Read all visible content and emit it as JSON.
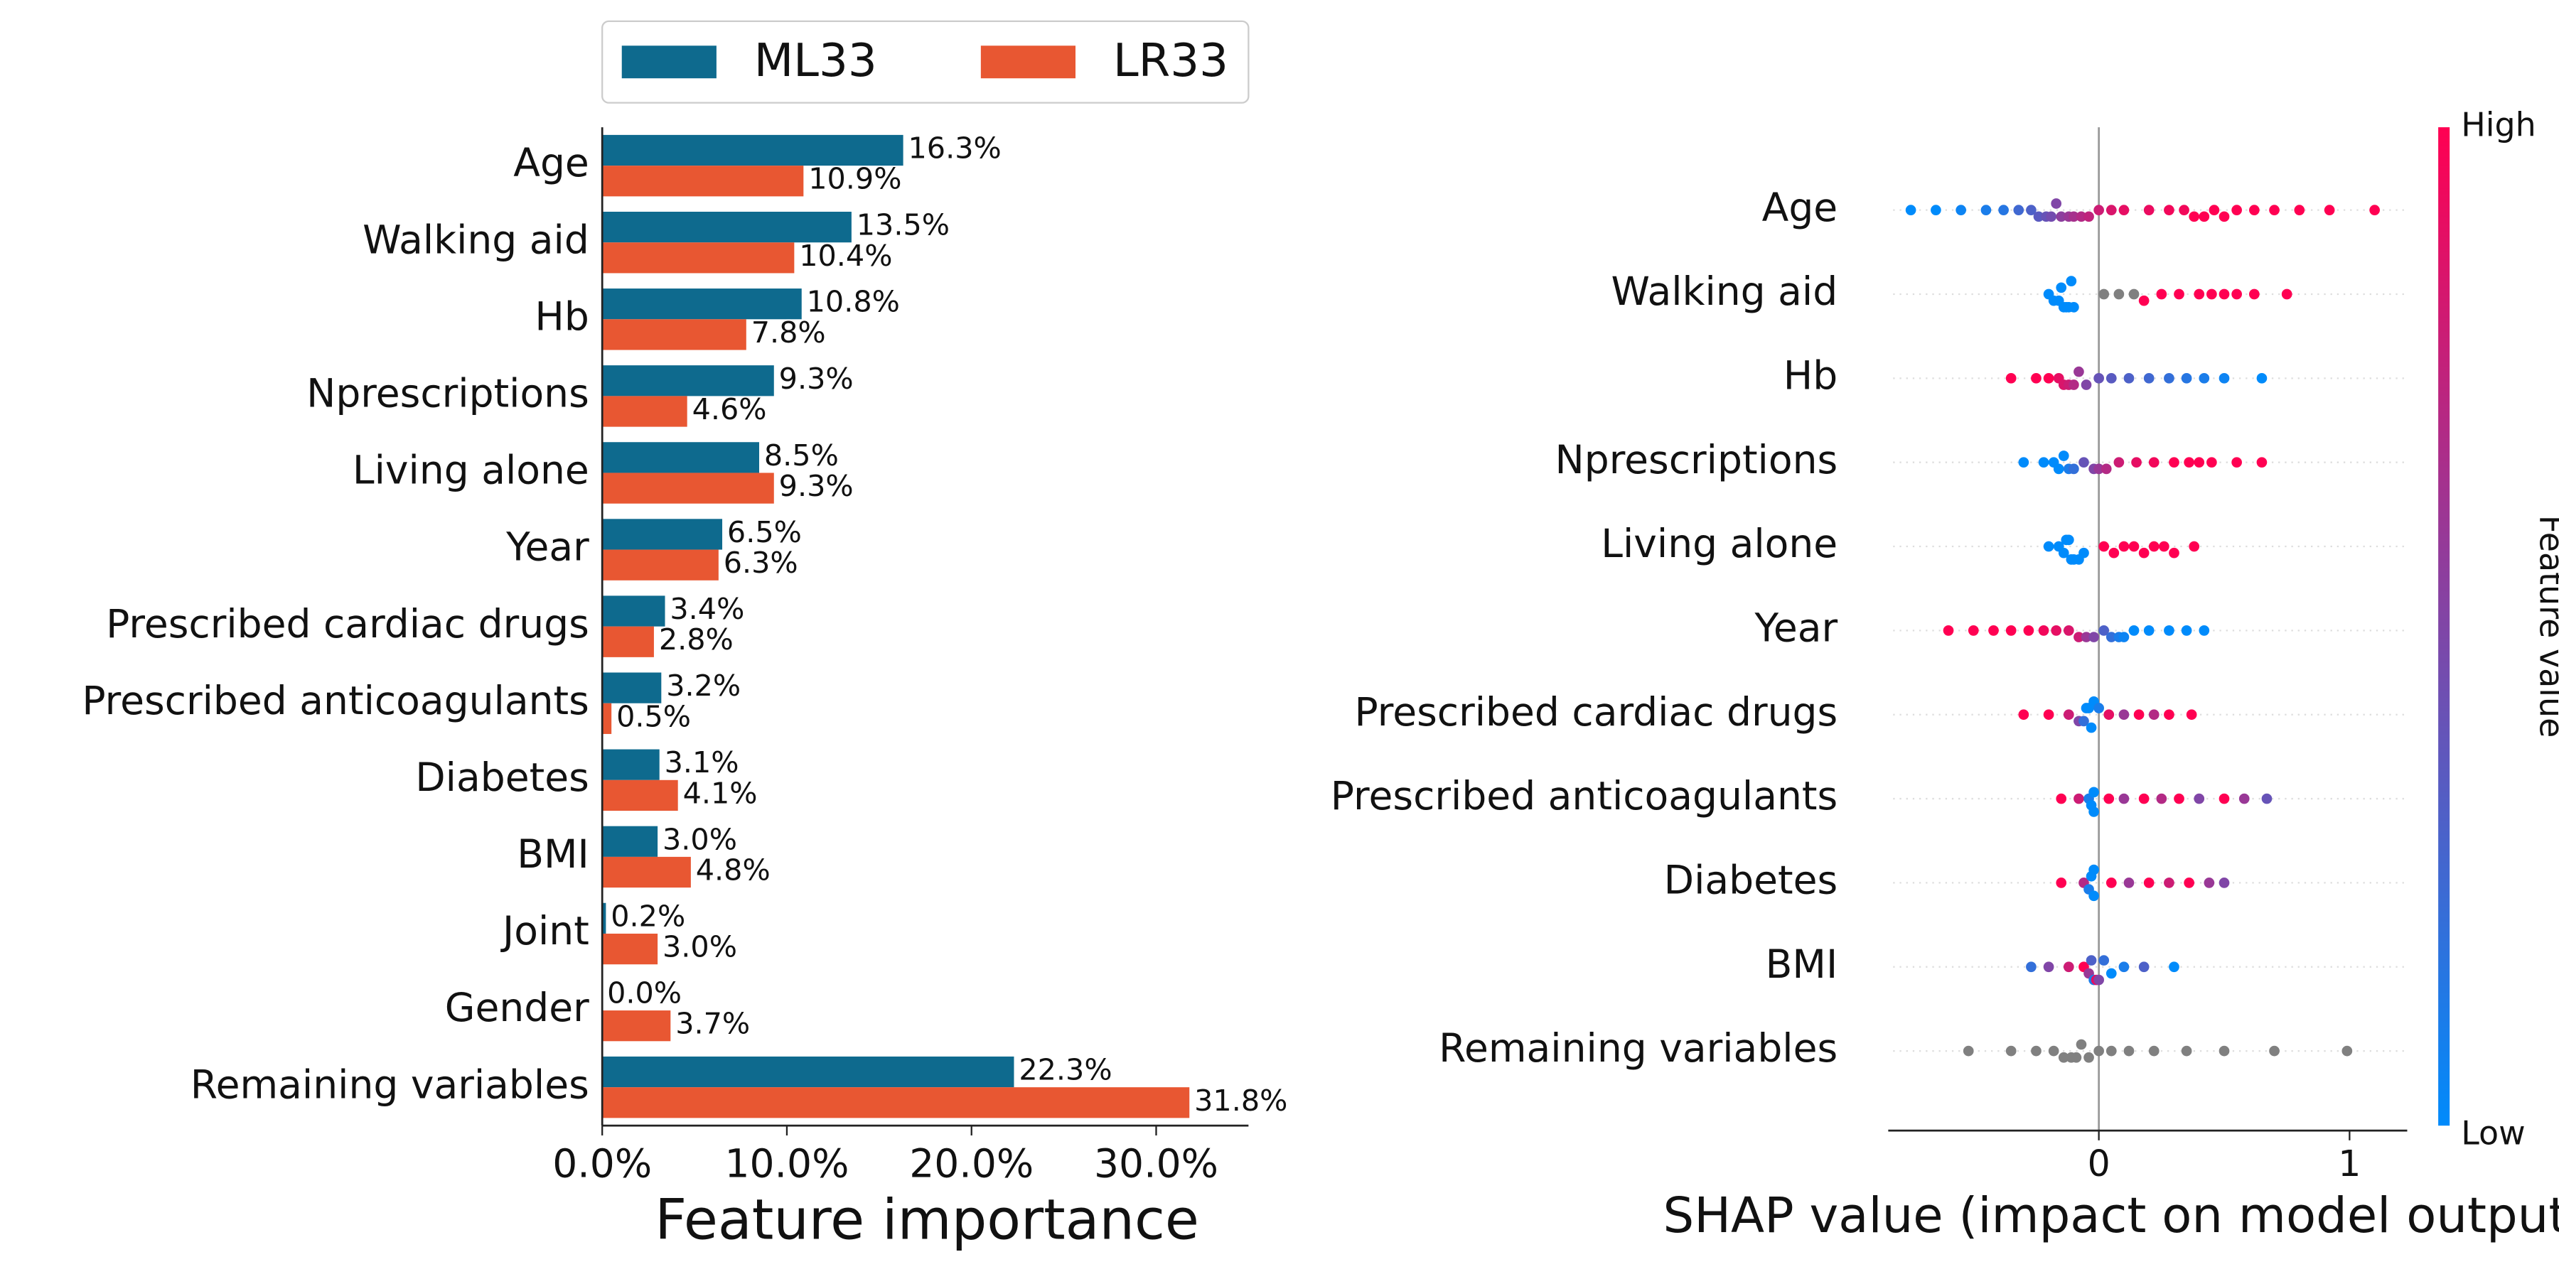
{
  "chart_data": [
    {
      "type": "hbar",
      "xlabel": "Feature importance",
      "categories": [
        "Age",
        "Walking aid",
        "Hb",
        "Nprescriptions",
        "Living alone",
        "Year",
        "Prescribed cardiac drugs",
        "Prescribed anticoagulants",
        "Diabetes",
        "BMI",
        "Joint",
        "Gender",
        "Remaining variables"
      ],
      "series": [
        {
          "name": "ML33",
          "color": "#0e6a8e",
          "label_color": "#0b5f80",
          "values": [
            16.3,
            13.5,
            10.8,
            9.3,
            8.5,
            6.5,
            3.4,
            3.2,
            3.1,
            3.0,
            0.2,
            0.0,
            22.3
          ],
          "value_labels": [
            "16.3%",
            "13.5%",
            "10.8%",
            "9.3%",
            "8.5%",
            "6.5%",
            "3.4%",
            "3.2%",
            "3.1%",
            "3.0%",
            "0.2%",
            "0.0%",
            "22.3%"
          ]
        },
        {
          "name": "LR33",
          "color": "#e85732",
          "label_color": "#d9431e",
          "values": [
            10.9,
            10.4,
            7.8,
            4.6,
            9.3,
            6.3,
            2.8,
            0.5,
            4.1,
            4.8,
            3.0,
            3.7,
            31.8
          ],
          "value_labels": [
            "10.9%",
            "10.4%",
            "7.8%",
            "4.6%",
            "9.3%",
            "6.3%",
            "2.8%",
            "0.5%",
            "4.1%",
            "4.8%",
            "3.0%",
            "3.7%",
            "31.8%"
          ]
        }
      ],
      "xlim": [
        0,
        35
      ],
      "xticks": [
        {
          "value": 0,
          "label": "0.0%"
        },
        {
          "value": 10,
          "label": "10.0%"
        },
        {
          "value": 20,
          "label": "20.0%"
        },
        {
          "value": 30,
          "label": "30.0%"
        }
      ],
      "legend": "top"
    },
    {
      "type": "beeswarm",
      "xlabel": "SHAP value (impact on model output)",
      "categories": [
        "Age",
        "Walking aid",
        "Hb",
        "Nprescriptions",
        "Living alone",
        "Year",
        "Prescribed cardiac drugs",
        "Prescribed anticoagulants",
        "Diabetes",
        "BMI",
        "Remaining variables"
      ],
      "values": [
        [
          -0.75,
          -0.65,
          -0.55,
          -0.45,
          -0.38,
          -0.32,
          -0.27,
          -0.24,
          -0.21,
          -0.19,
          -0.17,
          -0.15,
          -0.12,
          -0.1,
          -0.07,
          -0.04,
          0.0,
          0.05,
          0.1,
          0.2,
          0.28,
          0.34,
          0.38,
          0.42,
          0.46,
          0.5,
          0.55,
          0.62,
          0.7,
          0.8,
          0.92,
          1.1
        ],
        [
          -0.2,
          -0.18,
          -0.16,
          -0.15,
          -0.14,
          -0.13,
          -0.12,
          -0.11,
          -0.1,
          0.02,
          0.08,
          0.14,
          0.18,
          0.25,
          0.32,
          0.4,
          0.45,
          0.5,
          0.55,
          0.62,
          0.75
        ],
        [
          -0.35,
          -0.25,
          -0.2,
          -0.16,
          -0.14,
          -0.12,
          -0.1,
          -0.08,
          -0.05,
          0.0,
          0.05,
          0.12,
          0.2,
          0.28,
          0.35,
          0.42,
          0.5,
          0.65
        ],
        [
          -0.3,
          -0.22,
          -0.18,
          -0.16,
          -0.14,
          -0.12,
          -0.1,
          -0.06,
          -0.02,
          0.0,
          0.03,
          0.08,
          0.15,
          0.22,
          0.3,
          0.36,
          0.4,
          0.45,
          0.55,
          0.65
        ],
        [
          -0.2,
          -0.16,
          -0.14,
          -0.13,
          -0.12,
          -0.11,
          -0.1,
          -0.08,
          -0.06,
          0.02,
          0.06,
          0.1,
          0.14,
          0.18,
          0.22,
          0.26,
          0.3,
          0.38
        ],
        [
          -0.6,
          -0.5,
          -0.42,
          -0.35,
          -0.28,
          -0.22,
          -0.17,
          -0.12,
          -0.08,
          -0.05,
          -0.02,
          0.02,
          0.05,
          0.08,
          0.1,
          0.14,
          0.2,
          0.28,
          0.35,
          0.42
        ],
        [
          -0.3,
          -0.2,
          -0.12,
          -0.08,
          -0.06,
          -0.05,
          -0.04,
          -0.03,
          -0.02,
          0.0,
          0.04,
          0.1,
          0.16,
          0.22,
          0.28,
          0.37
        ],
        [
          -0.15,
          -0.08,
          -0.04,
          -0.03,
          -0.02,
          -0.02,
          0.04,
          0.1,
          0.18,
          0.25,
          0.32,
          0.4,
          0.5,
          0.58,
          0.67
        ],
        [
          -0.15,
          -0.06,
          -0.04,
          -0.03,
          -0.02,
          -0.02,
          0.05,
          0.12,
          0.2,
          0.28,
          0.36,
          0.44,
          0.5
        ],
        [
          -0.27,
          -0.2,
          -0.12,
          -0.06,
          -0.04,
          -0.03,
          -0.02,
          -0.01,
          0.0,
          0.02,
          0.05,
          0.1,
          0.18,
          0.3
        ],
        [
          -0.52,
          -0.35,
          -0.25,
          -0.18,
          -0.14,
          -0.11,
          -0.09,
          -0.07,
          -0.04,
          0.0,
          0.05,
          0.12,
          0.22,
          0.35,
          0.5,
          0.7,
          0.99
        ]
      ],
      "feature_values": [
        [
          0,
          0,
          0.05,
          0.1,
          0.15,
          0.25,
          0.3,
          0.35,
          0.4,
          0.45,
          0.5,
          0.55,
          0.6,
          0.65,
          0.7,
          0.75,
          0.8,
          0.85,
          0.9,
          0.92,
          0.95,
          0.95,
          1,
          1,
          1,
          1,
          1,
          1,
          1,
          1,
          1,
          1
        ],
        [
          0,
          0,
          0,
          0,
          0,
          0,
          0,
          0,
          0,
          null,
          null,
          null,
          1,
          1,
          1,
          1,
          1,
          1,
          1,
          1,
          1
        ],
        [
          1,
          1,
          1,
          0.9,
          0.85,
          0.8,
          0.7,
          0.6,
          0.5,
          0.4,
          0.35,
          0.3,
          0.25,
          0.2,
          0.15,
          0.1,
          0.05,
          0
        ],
        [
          0,
          0,
          0,
          0,
          0,
          0.1,
          0.2,
          0.4,
          0.5,
          0.6,
          0.7,
          0.8,
          0.9,
          0.95,
          1,
          1,
          1,
          1,
          1,
          1
        ],
        [
          0,
          0,
          0,
          0,
          0,
          0,
          0,
          0,
          0,
          1,
          1,
          1,
          1,
          1,
          1,
          1,
          1,
          1
        ],
        [
          1,
          1,
          1,
          1,
          1,
          0.95,
          0.9,
          0.85,
          0.8,
          0.6,
          0.5,
          0.3,
          0.2,
          0.1,
          0.05,
          0,
          0,
          0,
          0,
          0
        ],
        [
          1,
          1,
          0.8,
          0.5,
          0.2,
          0,
          0,
          0,
          0,
          0.1,
          0.9,
          0.6,
          1,
          0.7,
          1,
          1
        ],
        [
          1,
          0.8,
          0.1,
          0,
          0,
          0,
          1,
          0.6,
          1,
          0.7,
          1,
          0.5,
          1,
          0.6,
          0.4
        ],
        [
          1,
          0.7,
          0.1,
          0,
          0,
          0,
          1,
          0.6,
          1,
          0.8,
          1,
          0.6,
          0.5
        ],
        [
          0.2,
          0.5,
          0.8,
          1,
          0.6,
          0.3,
          0.1,
          0.9,
          0.5,
          0.2,
          0,
          0.1,
          0.3,
          0
        ],
        [
          null,
          null,
          null,
          null,
          null,
          null,
          null,
          null,
          null,
          null,
          null,
          null,
          null,
          null,
          null,
          null,
          null
        ]
      ],
      "xlim": [
        -0.84,
        1.23
      ],
      "xticks": [
        0,
        1
      ],
      "colorbar": {
        "label": "Feature value",
        "high": "High",
        "low": "Low",
        "low_color": "#008bfb",
        "high_color": "#ff0052"
      },
      "missing_color": "#808080"
    }
  ]
}
